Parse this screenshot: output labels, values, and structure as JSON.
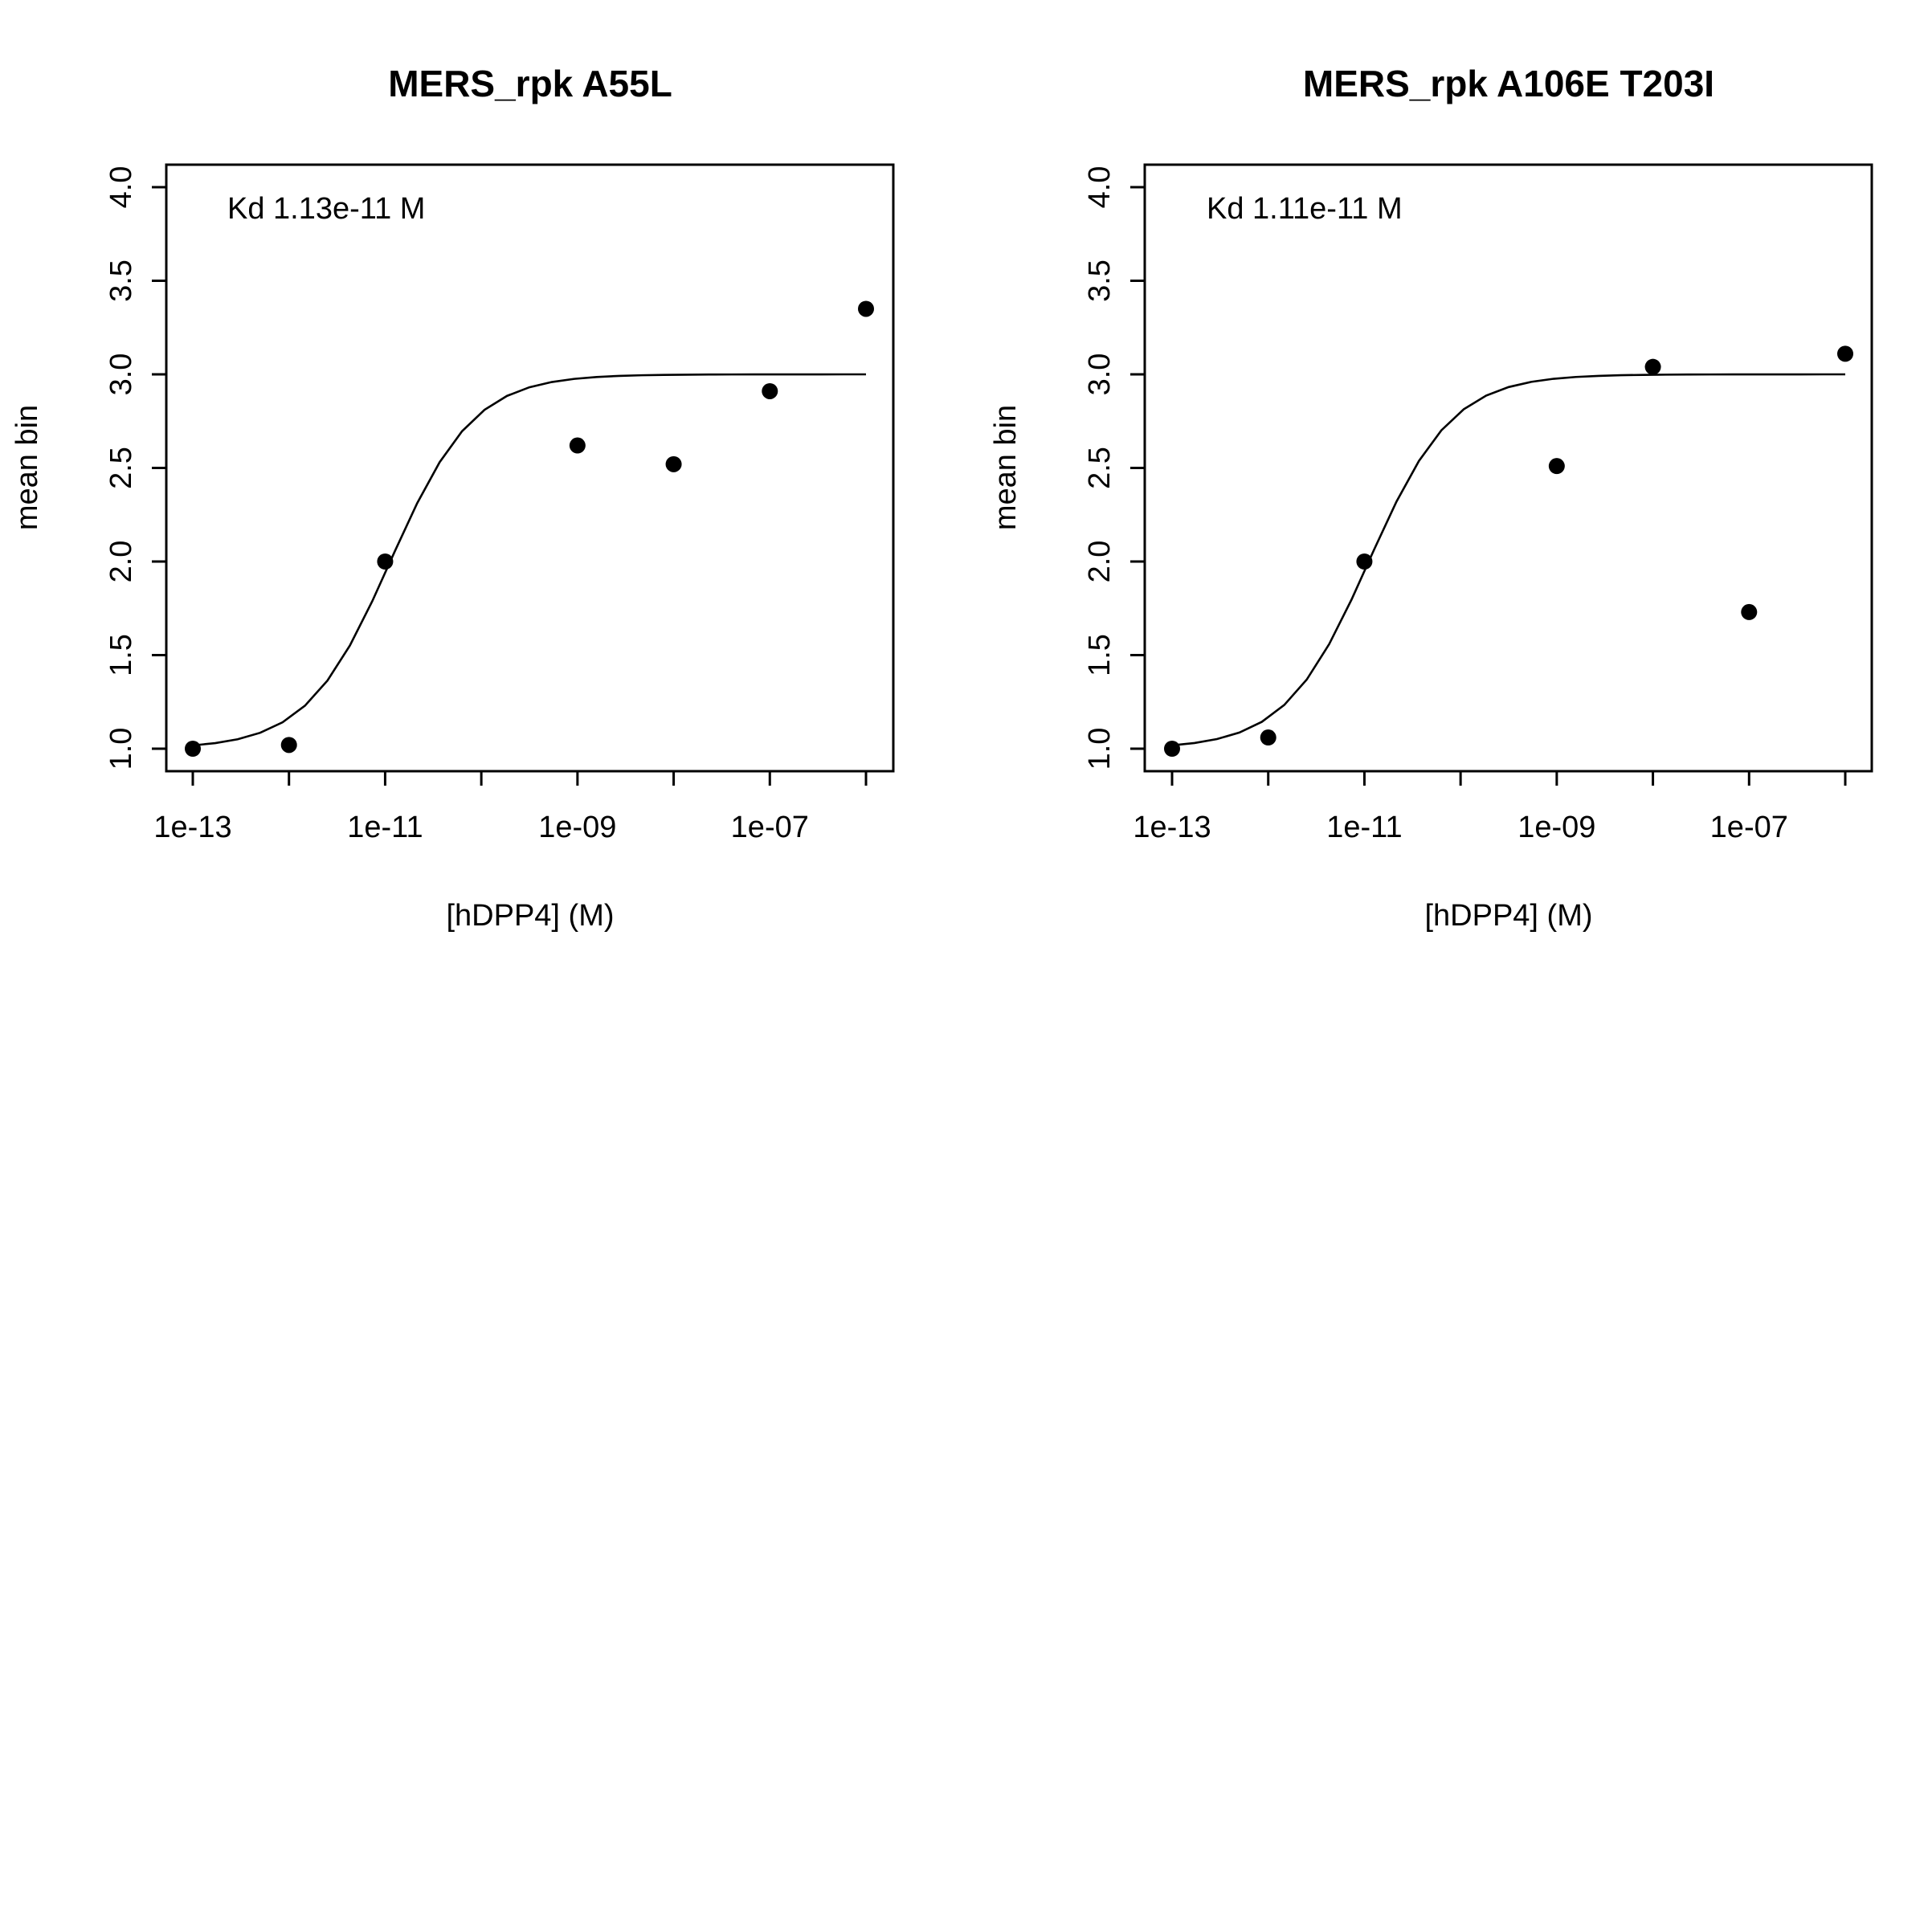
{
  "chart_data": [
    {
      "type": "scatter",
      "title": "MERS_rpk A55L",
      "xlabel": "[hDPP4] (M)",
      "ylabel": "mean bin",
      "x_scale": "log10",
      "xlim": [
        1e-13,
        1e-06
      ],
      "ylim": [
        1.0,
        4.0
      ],
      "x_ticks": [
        1e-13,
        1e-12,
        1e-11,
        1e-10,
        1e-09,
        1e-08,
        1e-07,
        1e-06
      ],
      "x_tick_labels": [
        "1e-13",
        "",
        "1e-11",
        "",
        "1e-09",
        "",
        "1e-07",
        ""
      ],
      "y_ticks": [
        1.0,
        1.5,
        2.0,
        2.5,
        3.0,
        3.5,
        4.0
      ],
      "y_tick_labels": [
        "1.0",
        "1.5",
        "2.0",
        "2.5",
        "3.0",
        "3.5",
        "4.0"
      ],
      "annotation": "Kd 1.13e-11 M",
      "points": {
        "x": [
          1e-13,
          1e-12,
          1e-11,
          1e-09,
          1e-08,
          1e-07,
          1e-06
        ],
        "y": [
          1.0,
          1.02,
          2.0,
          2.62,
          2.52,
          2.91,
          3.35
        ]
      },
      "fit": {
        "kd": 1.13e-11,
        "bottom": 1.0,
        "top": 3.0
      },
      "grid": false,
      "legend": "none"
    },
    {
      "type": "scatter",
      "title": "MERS_rpk A106E T203I",
      "xlabel": "[hDPP4] (M)",
      "ylabel": "mean bin",
      "x_scale": "log10",
      "xlim": [
        1e-13,
        1e-06
      ],
      "ylim": [
        1.0,
        4.0
      ],
      "x_ticks": [
        1e-13,
        1e-12,
        1e-11,
        1e-10,
        1e-09,
        1e-08,
        1e-07,
        1e-06
      ],
      "x_tick_labels": [
        "1e-13",
        "",
        "1e-11",
        "",
        "1e-09",
        "",
        "1e-07",
        ""
      ],
      "y_ticks": [
        1.0,
        1.5,
        2.0,
        2.5,
        3.0,
        3.5,
        4.0
      ],
      "y_tick_labels": [
        "1.0",
        "1.5",
        "2.0",
        "2.5",
        "3.0",
        "3.5",
        "4.0"
      ],
      "annotation": "Kd 1.11e-11 M",
      "points": {
        "x": [
          1e-13,
          1e-12,
          1e-11,
          1e-09,
          1e-08,
          1e-07,
          1e-06
        ],
        "y": [
          1.0,
          1.06,
          2.0,
          2.51,
          3.04,
          1.73,
          3.11
        ]
      },
      "fit": {
        "kd": 1.11e-11,
        "bottom": 1.0,
        "top": 3.0
      },
      "grid": false,
      "legend": "none"
    }
  ]
}
